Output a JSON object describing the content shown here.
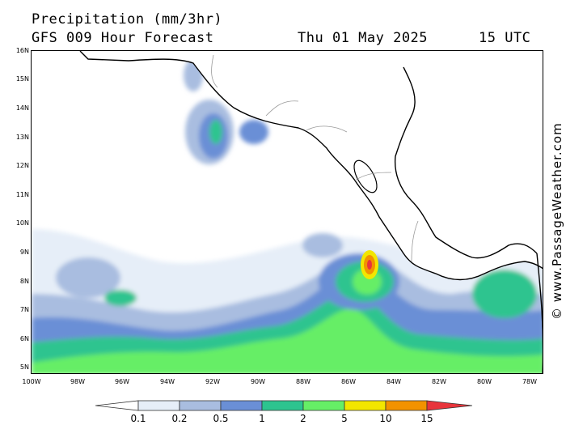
{
  "header": {
    "title": "Precipitation (mm/3hr)",
    "subtitle": "GFS 009 Hour Forecast",
    "date": "Thu 01 May 2025",
    "time": "15 UTC"
  },
  "credit": "© www.PassageWeather.com",
  "axes": {
    "lat_labels": [
      "16N",
      "15N",
      "14N",
      "13N",
      "12N",
      "11N",
      "10N",
      "9N",
      "8N",
      "7N",
      "6N",
      "5N"
    ],
    "lon_labels": [
      "100W",
      "98W",
      "96W",
      "94W",
      "92W",
      "90W",
      "88W",
      "86W",
      "84W",
      "82W",
      "80W",
      "78W"
    ]
  },
  "legend": {
    "levels": [
      "0.1",
      "0.2",
      "0.5",
      "1",
      "2",
      "5",
      "10",
      "15"
    ],
    "colors": [
      "#ffffff",
      "#e6eef8",
      "#a9bde0",
      "#6a8fd6",
      "#2dc48f",
      "#66ee66",
      "#f2e600",
      "#f29200",
      "#e8343b"
    ],
    "units": "mm/3hr"
  },
  "colors": {
    "land": "#ffffff",
    "ocean": "#ffffff",
    "coast": "#000000",
    "border": "#9a9a9a"
  }
}
